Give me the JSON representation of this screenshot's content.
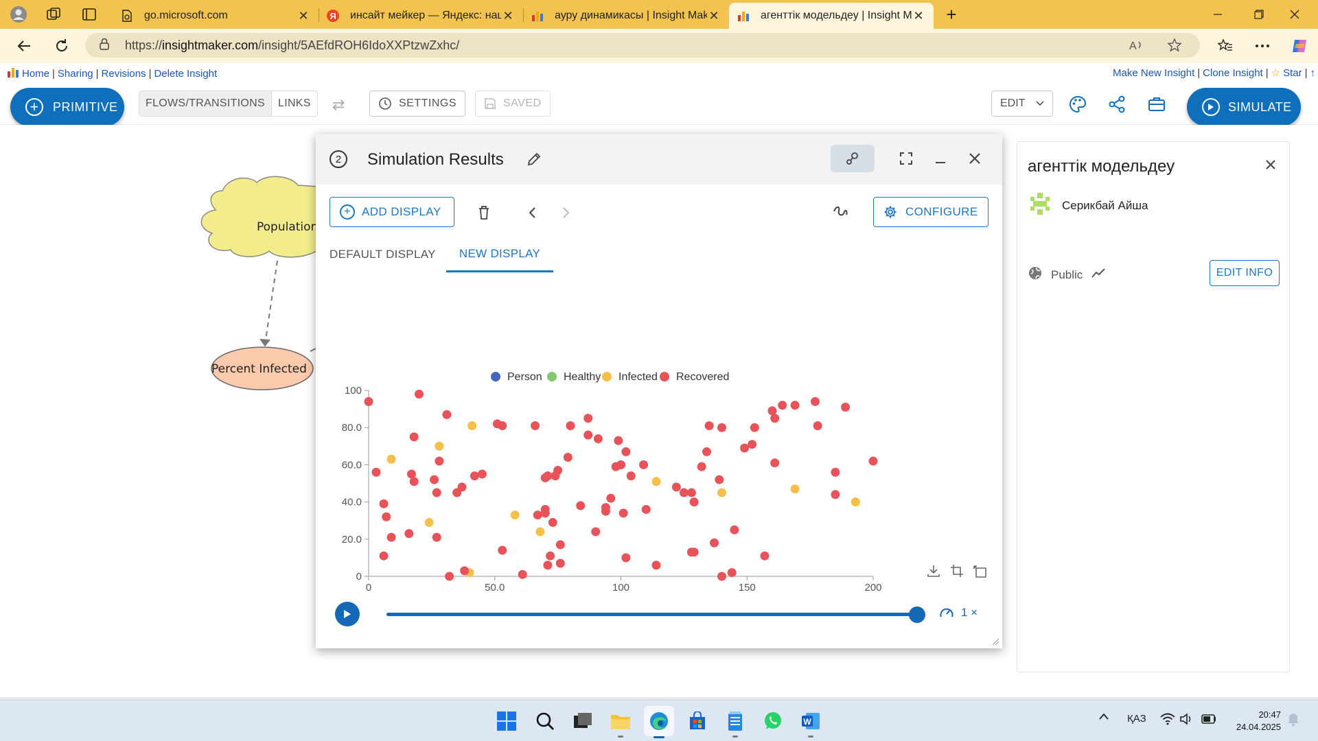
{
  "browser": {
    "tabs": [
      {
        "label": "go.microsoft.com",
        "close": "✕"
      },
      {
        "label": "инсайт мейкер — Яндекс: нашлось",
        "close": "✕"
      },
      {
        "label": "ауру динамикасы | Insight Maker",
        "close": "✕"
      },
      {
        "label": "агенттік модельдеу | Insight Maker",
        "close": "✕"
      }
    ],
    "new_tab": "+",
    "url_prefix": "https://",
    "url_domain": "insightmaker.com",
    "url_path": "/insight/5AEfdROH6IdoXXPtzwZxhc/"
  },
  "site": {
    "left_links": [
      "Home",
      "Sharing",
      "Revisions",
      "Delete Insight"
    ],
    "right_links": [
      "Make New Insight",
      "Clone Insight",
      "Star"
    ],
    "separator": "|",
    "star_glyph": "☆",
    "trailing": "↑"
  },
  "toolbar": {
    "primitive": "PRIMITIVE",
    "flows": "FLOWS/TRANSITIONS",
    "links": "LINKS",
    "settings": "SETTINGS",
    "saved": "SAVED",
    "edit": "EDIT",
    "simulate": "SIMULATE"
  },
  "diagram": {
    "nodes": [
      "Population",
      "Percent Infected"
    ]
  },
  "results": {
    "number": "2",
    "title": "Simulation Results",
    "add_display": "ADD DISPLAY",
    "configure": "CONFIGURE",
    "tabs": [
      "DEFAULT DISPLAY",
      "NEW DISPLAY"
    ],
    "speed": "1 ×"
  },
  "chart_data": {
    "type": "scatter",
    "xlim": [
      0,
      200
    ],
    "ylim": [
      0,
      100
    ],
    "x_ticks": [
      "0",
      "50.0",
      "100",
      "150",
      "200"
    ],
    "y_ticks": [
      "0",
      "20.0",
      "40.0",
      "60.0",
      "80.0",
      "100"
    ],
    "legend": [
      {
        "name": "Person",
        "color": "#4466c0"
      },
      {
        "name": "Healthy",
        "color": "#82c96b"
      },
      {
        "name": "Infected",
        "color": "#f4c04a"
      },
      {
        "name": "Recovered",
        "color": "#e8535a"
      }
    ],
    "series": [
      {
        "name": "Infected",
        "color": "#f4c04a",
        "points": [
          [
            9,
            63
          ],
          [
            24,
            29
          ],
          [
            28,
            70
          ],
          [
            40,
            2
          ],
          [
            41,
            81
          ],
          [
            58,
            33
          ],
          [
            68,
            24
          ],
          [
            114,
            51
          ],
          [
            140,
            45
          ],
          [
            169,
            47
          ],
          [
            193,
            40
          ]
        ]
      },
      {
        "name": "Recovered",
        "color": "#e8535a",
        "points": [
          [
            0,
            94
          ],
          [
            3,
            56
          ],
          [
            6,
            11
          ],
          [
            6,
            39
          ],
          [
            7,
            32
          ],
          [
            9,
            21
          ],
          [
            16,
            23
          ],
          [
            17,
            55
          ],
          [
            18,
            51
          ],
          [
            18,
            75
          ],
          [
            20,
            98
          ],
          [
            26,
            52
          ],
          [
            27,
            45
          ],
          [
            27,
            21
          ],
          [
            28,
            62
          ],
          [
            31,
            87
          ],
          [
            32,
            0
          ],
          [
            35,
            45
          ],
          [
            37,
            48
          ],
          [
            38,
            3
          ],
          [
            42,
            54
          ],
          [
            45,
            55
          ],
          [
            51,
            82
          ],
          [
            53,
            81
          ],
          [
            53,
            14
          ],
          [
            61,
            1
          ],
          [
            66,
            81
          ],
          [
            67,
            33
          ],
          [
            70,
            34
          ],
          [
            70,
            53
          ],
          [
            70,
            36
          ],
          [
            71,
            54
          ],
          [
            71,
            6
          ],
          [
            72,
            11
          ],
          [
            73,
            29
          ],
          [
            74,
            54
          ],
          [
            75,
            57
          ],
          [
            76,
            7
          ],
          [
            76,
            17
          ],
          [
            79,
            64
          ],
          [
            80,
            81
          ],
          [
            84,
            38
          ],
          [
            87,
            85
          ],
          [
            87,
            76
          ],
          [
            90,
            24
          ],
          [
            91,
            74
          ],
          [
            94,
            37
          ],
          [
            94,
            35
          ],
          [
            96,
            42
          ],
          [
            98,
            59
          ],
          [
            99,
            73
          ],
          [
            100,
            60
          ],
          [
            101,
            34
          ],
          [
            102,
            67
          ],
          [
            102,
            10
          ],
          [
            104,
            54
          ],
          [
            109,
            60
          ],
          [
            110,
            36
          ],
          [
            114,
            6
          ],
          [
            122,
            48
          ],
          [
            125,
            45
          ],
          [
            128,
            45
          ],
          [
            128,
            13
          ],
          [
            129,
            13
          ],
          [
            129,
            40
          ],
          [
            132,
            59
          ],
          [
            134,
            67
          ],
          [
            135,
            81
          ],
          [
            137,
            18
          ],
          [
            139,
            52
          ],
          [
            140,
            0
          ],
          [
            140,
            80
          ],
          [
            144,
            2
          ],
          [
            145,
            25
          ],
          [
            149,
            69
          ],
          [
            152,
            71
          ],
          [
            153,
            80
          ],
          [
            157,
            11
          ],
          [
            160,
            89
          ],
          [
            161,
            85
          ],
          [
            161,
            61
          ],
          [
            164,
            92
          ],
          [
            169,
            92
          ],
          [
            177,
            94
          ],
          [
            178,
            81
          ],
          [
            185,
            44
          ],
          [
            185,
            56
          ],
          [
            189,
            91
          ],
          [
            200,
            62
          ]
        ]
      }
    ]
  },
  "info": {
    "title": "агенттік модельдеу",
    "author": "Серикбай Айша",
    "visibility": "Public",
    "edit_info": "EDIT INFO"
  },
  "taskbar": {
    "lang": "ҚАЗ",
    "time": "20:47",
    "date": "24.04.2025"
  }
}
